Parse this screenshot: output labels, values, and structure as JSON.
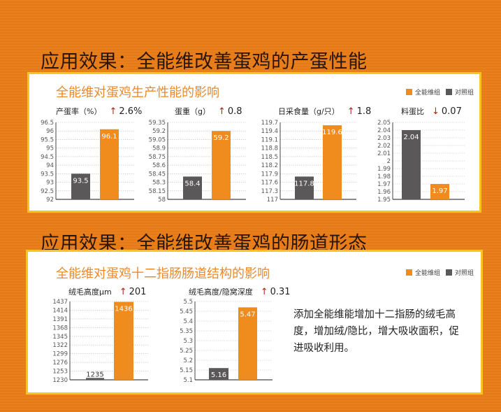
{
  "sections": [
    {
      "heading": "应用效果：全能维改善蛋鸡的产蛋性能",
      "panel_title": "全能维对蛋鸡生产性能的影响"
    },
    {
      "heading": "应用效果：全能维改善蛋鸡的肠道形态",
      "panel_title": "全能维对蛋鸡十二指肠肠道结构的影响"
    }
  ],
  "legend": {
    "treatment": "全能维组",
    "control": "对照组"
  },
  "colors": {
    "treatment": "#f08c1e",
    "control": "#5a5858"
  },
  "note": "添加全能维能增加十二指肠的绒毛高度，增加绒/隐比，增大吸收面积，促进吸收利用。",
  "chart_data": [
    {
      "type": "bar",
      "title": "产蛋率（%）",
      "delta": "2.6%",
      "direction": "up",
      "ylim": [
        92,
        96.5
      ],
      "ticks": [
        "92",
        "92.5",
        "93",
        "93.5",
        "94",
        "94.5",
        "95",
        "95.5",
        "96",
        "96.5"
      ],
      "series": [
        {
          "name": "对照组",
          "value": 93.5,
          "label": "93.5"
        },
        {
          "name": "全能维组",
          "value": 96.1,
          "label": "96.1"
        }
      ]
    },
    {
      "type": "bar",
      "title": "蛋重（g）",
      "delta": "0.8",
      "direction": "up",
      "ylim": [
        58,
        59.35
      ],
      "ticks": [
        "58",
        "58.15",
        "58.3",
        "58.45",
        "58.6",
        "58.75",
        "58.9",
        "59.05",
        "59.2",
        "59.35"
      ],
      "series": [
        {
          "name": "对照组",
          "value": 58.4,
          "label": "58.4"
        },
        {
          "name": "全能维组",
          "value": 59.2,
          "label": "59.2"
        }
      ]
    },
    {
      "type": "bar",
      "title": "日采食量（g/只）",
      "delta": "1.8",
      "direction": "up",
      "ylim": [
        117,
        119.7
      ],
      "ticks": [
        "117",
        "117.3",
        "117.6",
        "117.9",
        "118.2",
        "118.5",
        "118.8",
        "119.1",
        "119.4",
        "119.7"
      ],
      "series": [
        {
          "name": "对照组",
          "value": 117.8,
          "label": "117.8"
        },
        {
          "name": "全能维组",
          "value": 119.6,
          "label": "119.6"
        }
      ]
    },
    {
      "type": "bar",
      "title": "料蛋比",
      "delta": "0.07",
      "direction": "down",
      "ylim": [
        1.95,
        2.05
      ],
      "ticks": [
        "1.95",
        "1.96",
        "1.97",
        "1.98",
        "1.99",
        "2",
        "2.01",
        "2.02",
        "2.03",
        "2.04",
        "2.05"
      ],
      "series": [
        {
          "name": "对照组",
          "value": 2.04,
          "label": "2.04"
        },
        {
          "name": "全能维组",
          "value": 1.97,
          "label": "1.97"
        }
      ]
    },
    {
      "type": "bar",
      "title": "绒毛高度μm",
      "delta": "201",
      "direction": "up",
      "ylim": [
        1230,
        1437
      ],
      "ticks": [
        "1230",
        "1253",
        "1276",
        "1299",
        "1322",
        "1345",
        "1368",
        "1391",
        "1414",
        "1437"
      ],
      "series": [
        {
          "name": "对照组",
          "value": 1235,
          "label": "1235"
        },
        {
          "name": "全能维组",
          "value": 1436,
          "label": "1436"
        }
      ]
    },
    {
      "type": "bar",
      "title": "绒毛高度/隐窝深度",
      "delta": "0.31",
      "direction": "up",
      "ylim": [
        5.1,
        5.5
      ],
      "ticks": [
        "5.1",
        "5.15",
        "5.2",
        "5.25",
        "5.3",
        "5.35",
        "5.4",
        "5.45",
        "5.5"
      ],
      "series": [
        {
          "name": "对照组",
          "value": 5.16,
          "label": "5.16"
        },
        {
          "name": "全能维组",
          "value": 5.47,
          "label": "5.47"
        }
      ]
    }
  ]
}
